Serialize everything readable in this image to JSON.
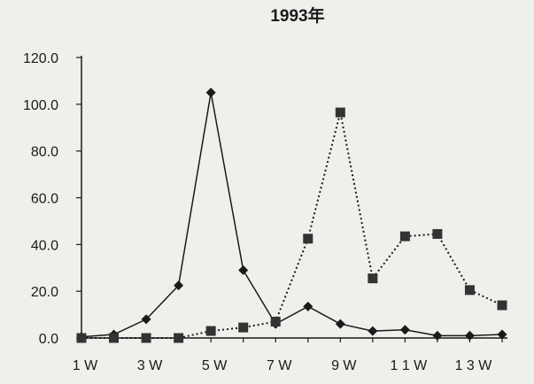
{
  "chart_data": {
    "type": "line",
    "title": "1993年",
    "xlabel": "",
    "ylabel": "",
    "ylim": [
      0,
      120
    ],
    "yticks": [
      "0.0",
      "20.0",
      "40.0",
      "60.0",
      "80.0",
      "100.0",
      "120.0"
    ],
    "categories": [
      "1W",
      "2W",
      "3W",
      "4W",
      "5W",
      "6W",
      "7W",
      "8W",
      "9W",
      "10W",
      "11W",
      "12W",
      "13W",
      "14W"
    ],
    "xtick_labels": [
      {
        "label": "1 W",
        "index": 0
      },
      {
        "label": "3 W",
        "index": 2
      },
      {
        "label": "5 W",
        "index": 4
      },
      {
        "label": "7 W",
        "index": 6
      },
      {
        "label": "9 W",
        "index": 8
      },
      {
        "label": "1 1 W",
        "index": 10
      },
      {
        "label": "1 3 W",
        "index": 12
      }
    ],
    "grid": false,
    "legend": "none",
    "series": [
      {
        "marker": "diamond",
        "line_style": "solid",
        "color": "#1a1a1a",
        "values": [
          0.5,
          1.5,
          8,
          22.5,
          105,
          29,
          6,
          13.5,
          6,
          3,
          3.5,
          1,
          1,
          1.5
        ]
      },
      {
        "marker": "square",
        "line_style": "dotted",
        "color": "#1a1a1a",
        "values": [
          0,
          0,
          0,
          0,
          3,
          4.5,
          7,
          42.5,
          96.5,
          25.5,
          43.5,
          44.5,
          20.5,
          14
        ]
      }
    ]
  }
}
